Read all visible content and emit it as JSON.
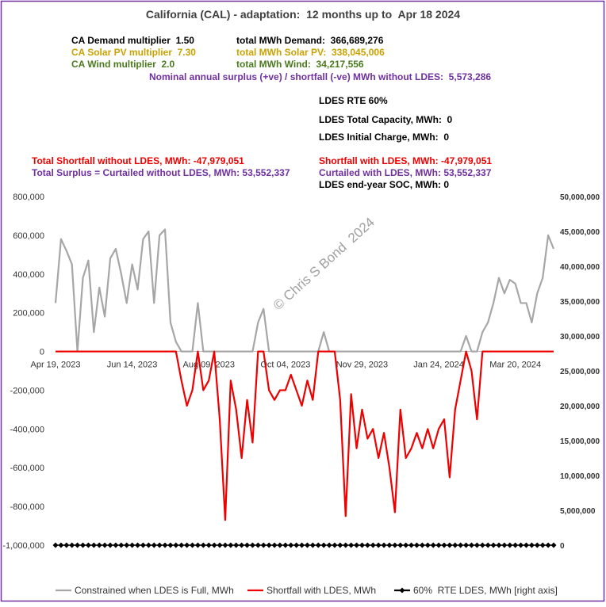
{
  "chart_data": {
    "type": "line",
    "title": "California (CAL) - adaptation:  12 months up to  Apr 18 2024",
    "annotations": [
      "CA Demand multiplier  1.50",
      "total MWh Demand:  366,689,276",
      "CA Solar PV multiplier  7.30",
      "total MWh Solar PV:  338,045,006",
      "CA Wind multiplier  2.0",
      "total MWh Wind:  34,217,556",
      "Nominal annual surplus (+ve) / shortfall (-ve) MWh without LDES:  5,573,286",
      "LDES RTE 60%",
      "LDES Total Capacity, MWh:  0",
      "LDES Initial Charge, MWh:  0",
      "Total Shortfall without LDES, MWh: -47,979,051",
      "Total Surplus = Curtailed without LDES, MWh: 53,552,337",
      "Shortfall with LDES, MWh: -47,979,051",
      "Curtailed with LDES, MWh: 53,552,337",
      "LDES end-year SOC, MWh: 0",
      "© Chris S Bond  2024"
    ],
    "categories": [
      "Apr 19, 2023",
      null,
      null,
      null,
      null,
      null,
      null,
      null,
      null,
      null,
      null,
      null,
      null,
      null,
      "Jun 14, 2023",
      null,
      null,
      null,
      null,
      null,
      null,
      null,
      null,
      null,
      null,
      null,
      null,
      null,
      "Aug 09, 2023",
      null,
      null,
      null,
      null,
      null,
      null,
      null,
      null,
      null,
      null,
      null,
      null,
      null,
      "Oct 04, 2023",
      null,
      null,
      null,
      null,
      null,
      null,
      null,
      null,
      null,
      null,
      null,
      null,
      null,
      "Nov 29, 2023",
      null,
      null,
      null,
      null,
      null,
      null,
      null,
      null,
      null,
      null,
      null,
      null,
      null,
      "Jan 24, 2024",
      null,
      null,
      null,
      null,
      null,
      null,
      null,
      null,
      null,
      null,
      null,
      null,
      null,
      "Mar 20, 2024",
      null,
      null,
      null,
      null,
      null,
      null,
      null
    ],
    "series": [
      {
        "name": "Constrained when LDES is Full, MWh",
        "color": "#a6a6a6",
        "values": [
          250000,
          580000,
          520000,
          450000,
          0,
          380000,
          470000,
          100000,
          330000,
          180000,
          480000,
          530000,
          400000,
          250000,
          450000,
          320000,
          580000,
          620000,
          250000,
          600000,
          630000,
          150000,
          50000,
          0,
          0,
          0,
          250000,
          0,
          0,
          0,
          0,
          0,
          0,
          0,
          0,
          0,
          0,
          150000,
          220000,
          0,
          0,
          0,
          0,
          0,
          0,
          0,
          0,
          0,
          0,
          100000,
          0,
          0,
          0,
          0,
          0,
          0,
          0,
          0,
          0,
          0,
          0,
          0,
          0,
          0,
          0,
          0,
          0,
          0,
          0,
          0,
          0,
          0,
          0,
          0,
          0,
          80000,
          0,
          0,
          100000,
          150000,
          250000,
          380000,
          300000,
          370000,
          350000,
          250000,
          250000,
          150000,
          300000,
          380000,
          600000,
          530000
        ]
      },
      {
        "name": "Shortfall with LDES, MWh",
        "color": "#ee0000",
        "values": [
          0,
          0,
          0,
          0,
          0,
          0,
          0,
          0,
          0,
          0,
          0,
          0,
          0,
          0,
          0,
          0,
          0,
          0,
          0,
          0,
          0,
          0,
          0,
          -150000,
          -280000,
          -200000,
          0,
          -200000,
          -150000,
          0,
          -350000,
          -870000,
          -150000,
          -300000,
          -550000,
          -250000,
          -470000,
          0,
          0,
          -200000,
          -250000,
          -200000,
          -200000,
          -120000,
          -200000,
          -280000,
          -150000,
          -250000,
          0,
          0,
          0,
          0,
          -250000,
          -850000,
          -220000,
          -500000,
          -300000,
          -450000,
          -400000,
          -550000,
          -420000,
          -600000,
          -830000,
          -300000,
          -550000,
          -500000,
          -420000,
          -500000,
          -400000,
          -500000,
          -400000,
          -350000,
          -650000,
          -300000,
          -150000,
          0,
          -100000,
          -350000,
          0,
          0,
          0,
          0,
          0,
          0,
          0,
          0,
          0,
          0,
          0,
          0,
          0,
          0
        ]
      },
      {
        "name": "60%  RTE LDES, MWh [right axis]",
        "color": "#000000",
        "axis": "y2",
        "values": [
          0,
          0,
          0,
          0,
          0,
          0,
          0,
          0,
          0,
          0,
          0,
          0,
          0,
          0,
          0,
          0,
          0,
          0,
          0,
          0,
          0,
          0,
          0,
          0,
          0,
          0,
          0,
          0,
          0,
          0,
          0,
          0,
          0,
          0,
          0,
          0,
          0,
          0,
          0,
          0,
          0,
          0,
          0,
          0,
          0,
          0,
          0,
          0,
          0,
          0,
          0,
          0,
          0,
          0,
          0,
          0,
          0,
          0,
          0,
          0,
          0,
          0,
          0,
          0,
          0,
          0,
          0,
          0,
          0,
          0,
          0,
          0,
          0,
          0,
          0,
          0,
          0,
          0,
          0,
          0,
          0,
          0,
          0,
          0,
          0,
          0,
          0,
          0,
          0,
          0,
          0,
          0
        ]
      }
    ],
    "ylim": [
      -1000000,
      800000
    ],
    "yticks": [
      {
        "value": -1000000,
        "label": "-1,000,000"
      },
      {
        "value": -800000,
        "label": "-800,000"
      },
      {
        "value": -600000,
        "label": "-600,000"
      },
      {
        "value": -400000,
        "label": "-400,000"
      },
      {
        "value": -200000,
        "label": "-200,000"
      },
      0,
      {
        "value": 200000,
        "label": "200,000"
      },
      {
        "value": 400000,
        "label": "400,000"
      },
      {
        "value": 600000,
        "label": "600,000"
      },
      {
        "value": 800000,
        "label": "800,000"
      }
    ],
    "y2lim": [
      0,
      50000000
    ],
    "y2ticks": [
      0,
      {
        "value": 5000000,
        "label": "5,000,000"
      },
      {
        "value": 10000000,
        "label": "10,000,000"
      },
      {
        "value": 15000000,
        "label": "15,000,000"
      },
      {
        "value": 20000000,
        "label": "20,000,000"
      },
      {
        "value": 25000000,
        "label": "25,000,000"
      },
      {
        "value": 30000000,
        "label": "30,000,000"
      },
      {
        "value": 35000000,
        "label": "35,000,000"
      },
      {
        "value": 40000000,
        "label": "40,000,000"
      },
      {
        "value": 45000000,
        "label": "45,000,000"
      },
      {
        "value": 50000000,
        "label": "50,000,000"
      }
    ],
    "grid": false,
    "legend": "bottom"
  }
}
